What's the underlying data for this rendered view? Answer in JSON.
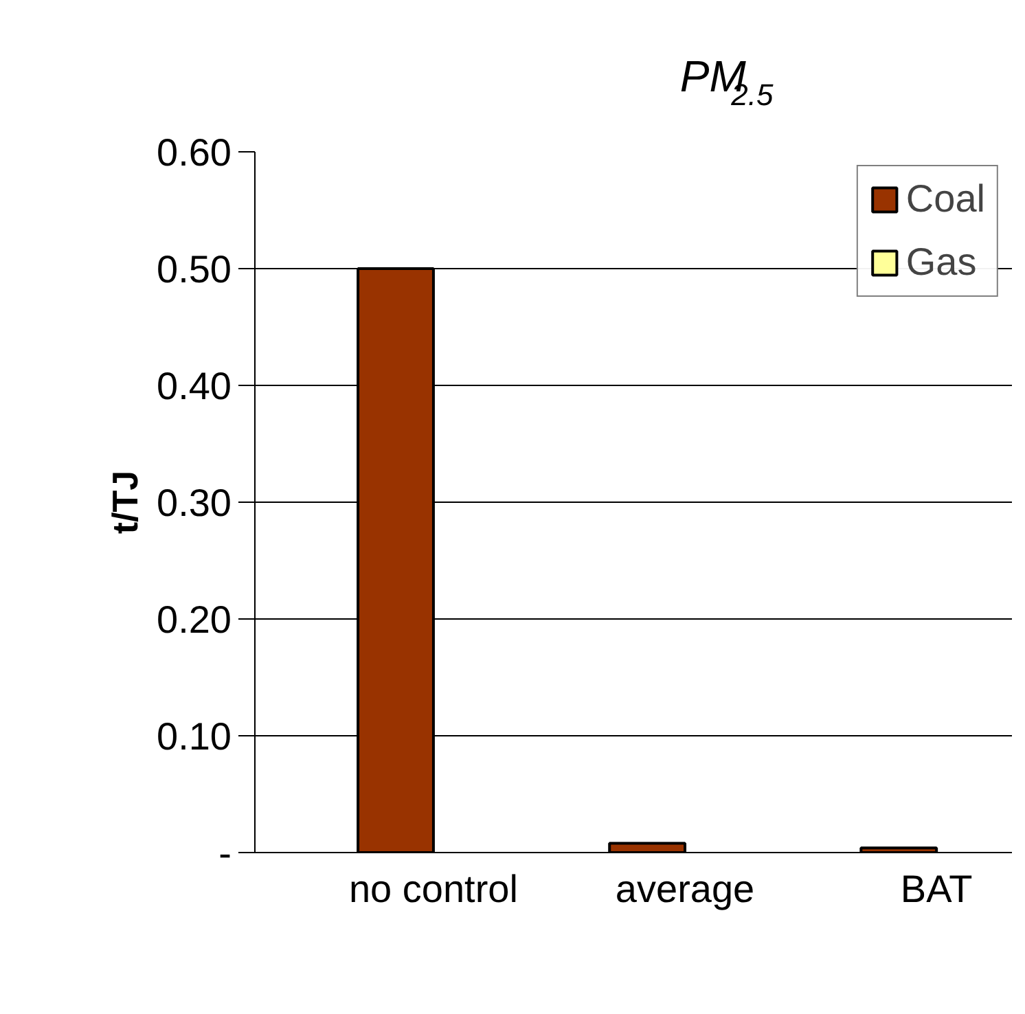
{
  "chart_data": {
    "type": "bar",
    "title": "PM$_{2.5}$",
    "ylabel": "t/TJ",
    "categories": [
      "no control",
      "average",
      "BAT"
    ],
    "series": [
      {
        "name": "Coal",
        "color": "#993300",
        "values": [
          0.5,
          0.008,
          0.004
        ]
      },
      {
        "name": "Gas",
        "color": "#ffff99",
        "values": [
          null,
          null,
          null
        ]
      }
    ],
    "ylim": [
      0,
      0.6
    ],
    "yticks": [
      {
        "value": 0,
        "label": "-"
      },
      {
        "value": 0.1,
        "label": "0.10"
      },
      {
        "value": 0.2,
        "label": "0.20"
      },
      {
        "value": 0.3,
        "label": "0.30"
      },
      {
        "value": 0.4,
        "label": "0.40"
      },
      {
        "value": 0.5,
        "label": "0.50"
      },
      {
        "value": 0.6,
        "label": "0.60"
      }
    ],
    "grid": "y",
    "legend": "top right"
  }
}
